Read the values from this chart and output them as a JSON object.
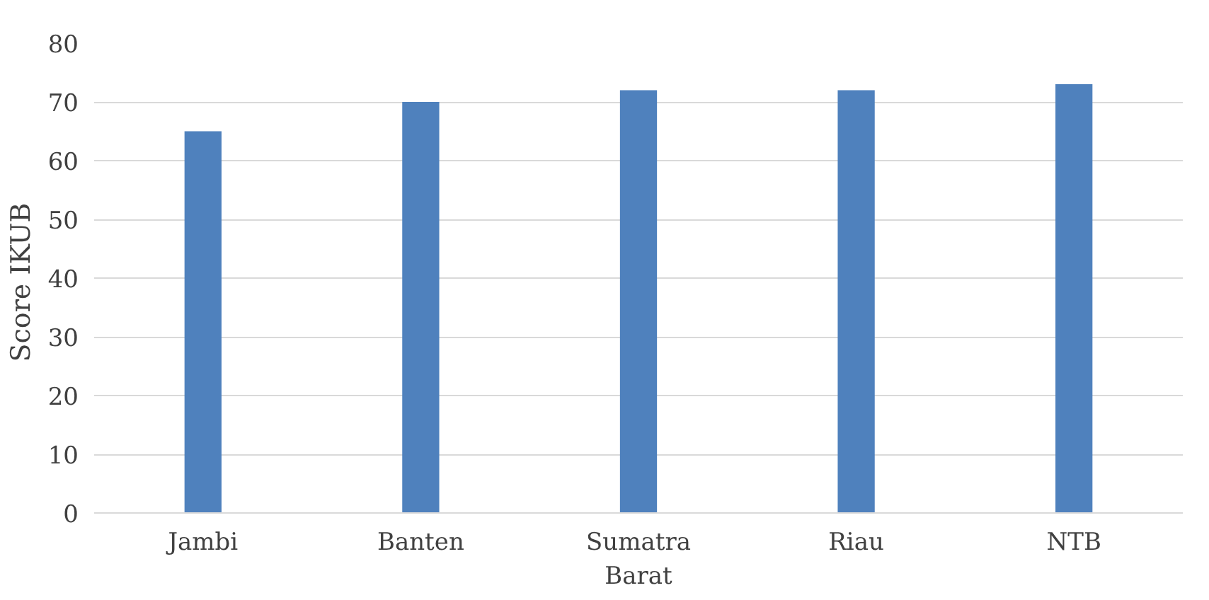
{
  "chart_data": {
    "type": "bar",
    "ylabel": "Score  IKUB",
    "categories": [
      "Jambi",
      "Banten",
      "Sumatra\nBarat",
      "Riau",
      "NTB"
    ],
    "values": [
      65,
      70,
      72,
      72,
      73
    ],
    "color": "#4f81bd",
    "ylim": [
      0,
      80
    ],
    "yticks": [
      0,
      10,
      20,
      30,
      40,
      50,
      60,
      70,
      80
    ],
    "grid": "y"
  }
}
